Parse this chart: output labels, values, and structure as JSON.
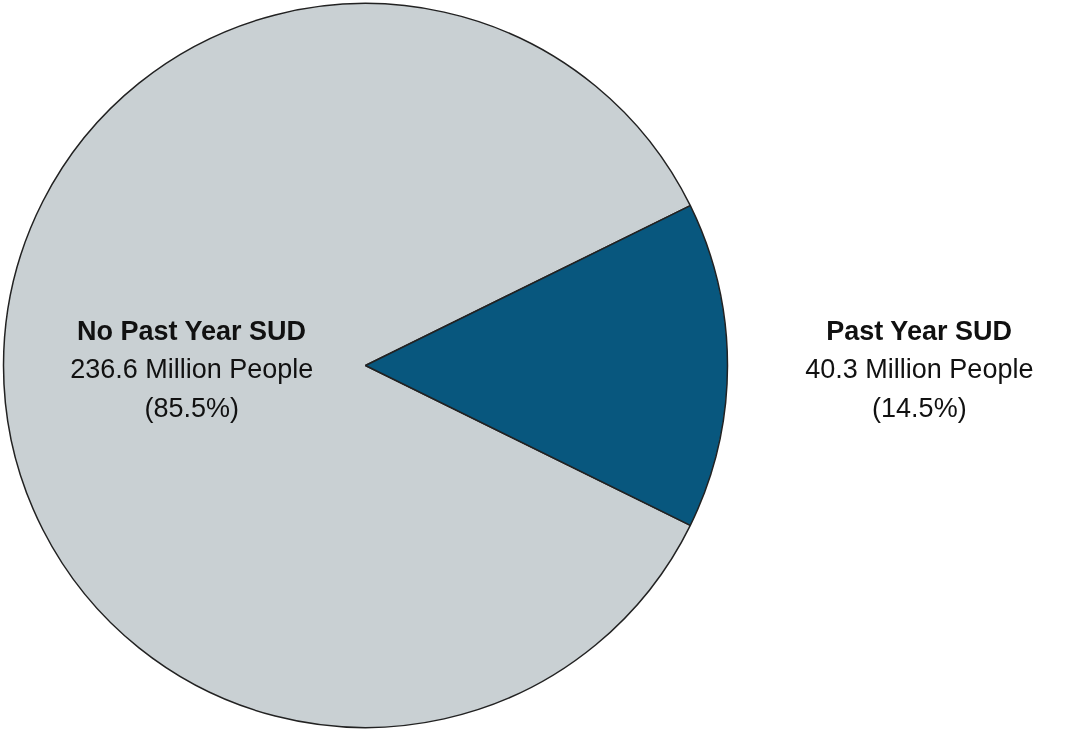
{
  "chart_data": {
    "type": "pie",
    "categories": [
      "No Past Year SUD",
      "Past Year SUD"
    ],
    "values": [
      236.6,
      40.3
    ],
    "colors": [
      "#c9d0d3",
      "#08577e"
    ],
    "value_labels": [
      "236.6 Million People\n(85.5%)",
      "40.3 Million People\n(14.5%)"
    ]
  }
}
